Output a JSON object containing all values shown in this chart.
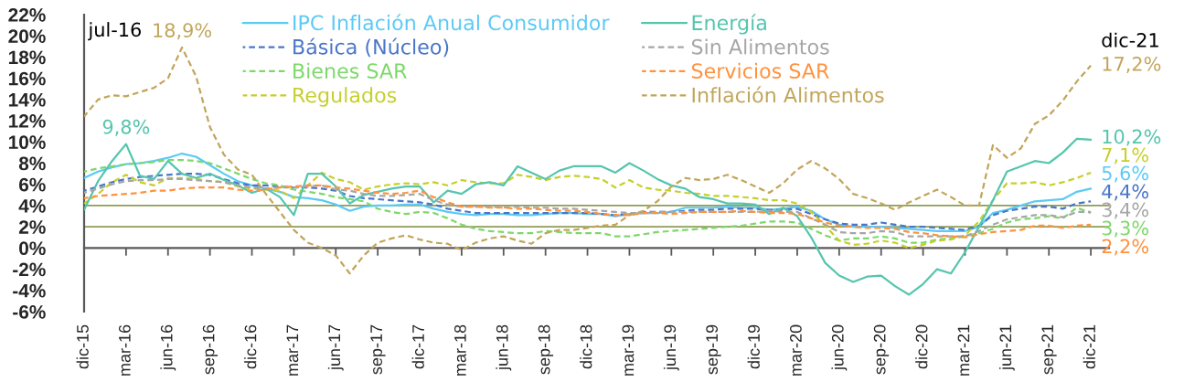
{
  "chart_data": {
    "type": "line",
    "categories": [
      "dic-15",
      null,
      null,
      "mar-16",
      null,
      null,
      "jun-16",
      null,
      null,
      "sep-16",
      null,
      null,
      "dic-16",
      null,
      null,
      "mar-17",
      null,
      null,
      "jun-17",
      null,
      null,
      "sep-17",
      null,
      null,
      "dic-17",
      null,
      null,
      "mar-18",
      null,
      null,
      "jun-18",
      null,
      null,
      "sep-18",
      null,
      null,
      "dic-18",
      null,
      null,
      "mar-19",
      null,
      null,
      "jun-19",
      null,
      null,
      "sep-19",
      null,
      null,
      "dic-19",
      null,
      null,
      "mar-20",
      null,
      null,
      "jun-20",
      null,
      null,
      "sep-20",
      null,
      null,
      "dic-20",
      null,
      null,
      "mar-21",
      null,
      null,
      "jun-21",
      null,
      null,
      "sep-21",
      null,
      null,
      "dic-21"
    ],
    "series": [
      {
        "name": "IPC Inflación Anual Consumidor",
        "color": "#5bcaf5",
        "line_style": "solid",
        "values": [
          6.6,
          7.2,
          7.6,
          7.9,
          8.0,
          8.2,
          8.5,
          8.9,
          8.6,
          7.8,
          7.0,
          6.3,
          5.9,
          5.6,
          5.3,
          4.8,
          4.7,
          4.5,
          4.1,
          3.5,
          3.9,
          4.0,
          4.0,
          4.1,
          4.1,
          3.7,
          3.4,
          3.2,
          3.1,
          3.2,
          3.2,
          3.1,
          3.1,
          3.2,
          3.3,
          3.3,
          3.2,
          3.2,
          3.0,
          3.2,
          3.3,
          3.3,
          3.4,
          3.8,
          3.8,
          3.8,
          3.9,
          3.8,
          3.8,
          3.6,
          3.7,
          3.9,
          3.5,
          2.7,
          2.2,
          2.0,
          2.0,
          2.0,
          1.9,
          1.8,
          1.7,
          1.6,
          1.6,
          1.6,
          2.0,
          3.3,
          3.6,
          4.0,
          4.4,
          4.5,
          4.6,
          5.3,
          5.6
        ],
        "value_labels": [
          null,
          null,
          null,
          null,
          null,
          null,
          null,
          null,
          null,
          null,
          null,
          null,
          null,
          null,
          null,
          null,
          null,
          null,
          null,
          null,
          null,
          null,
          null,
          null,
          null,
          null,
          null,
          null,
          null,
          null,
          null,
          null,
          null,
          null,
          null,
          null,
          null,
          null,
          null,
          null,
          null,
          null,
          null,
          null,
          null,
          null,
          null,
          null,
          null,
          null,
          null,
          null,
          null,
          null,
          null,
          null,
          null,
          null,
          null,
          null,
          null,
          null,
          null,
          null,
          null,
          null,
          null,
          null,
          null,
          null,
          null,
          null,
          "5,6%"
        ]
      },
      {
        "name": "Básica (Núcleo)",
        "color": "#4a76c8",
        "line_style": "dashed",
        "values": [
          5.4,
          5.8,
          6.2,
          6.5,
          6.7,
          6.8,
          6.9,
          7.0,
          7.0,
          6.9,
          6.5,
          6.1,
          5.9,
          5.9,
          5.8,
          5.7,
          5.7,
          5.6,
          5.4,
          4.9,
          4.7,
          4.6,
          4.5,
          4.4,
          4.3,
          4.1,
          3.7,
          3.5,
          3.3,
          3.3,
          3.3,
          3.3,
          3.3,
          3.3,
          3.3,
          3.3,
          3.3,
          3.2,
          3.1,
          3.2,
          3.4,
          3.4,
          3.4,
          3.5,
          3.6,
          3.6,
          3.7,
          3.7,
          3.7,
          3.6,
          3.6,
          3.7,
          3.2,
          2.7,
          2.3,
          2.2,
          2.2,
          2.4,
          2.2,
          2.0,
          2.0,
          1.9,
          1.8,
          1.7,
          2.1,
          3.1,
          3.5,
          3.7,
          3.9,
          3.9,
          3.7,
          4.2,
          4.4
        ],
        "value_labels": [
          null,
          null,
          null,
          null,
          null,
          null,
          null,
          null,
          null,
          null,
          null,
          null,
          null,
          null,
          null,
          null,
          null,
          null,
          null,
          null,
          null,
          null,
          null,
          null,
          null,
          null,
          null,
          null,
          null,
          null,
          null,
          null,
          null,
          null,
          null,
          null,
          null,
          null,
          null,
          null,
          null,
          null,
          null,
          null,
          null,
          null,
          null,
          null,
          null,
          null,
          null,
          null,
          null,
          null,
          null,
          null,
          null,
          null,
          null,
          null,
          null,
          null,
          null,
          null,
          null,
          null,
          null,
          null,
          null,
          null,
          null,
          null,
          "4,4%"
        ]
      },
      {
        "name": "Bienes SAR",
        "color": "#7dd86a",
        "line_style": "dashed",
        "values": [
          7.2,
          7.5,
          7.7,
          7.9,
          8.0,
          8.1,
          8.3,
          8.3,
          8.2,
          8.0,
          7.5,
          7.0,
          6.5,
          6.1,
          5.9,
          5.5,
          5.3,
          5.1,
          4.8,
          4.6,
          4.4,
          3.7,
          3.4,
          3.2,
          3.4,
          3.3,
          2.8,
          2.2,
          1.8,
          1.6,
          1.5,
          1.4,
          1.4,
          1.6,
          1.5,
          1.4,
          1.4,
          1.4,
          1.1,
          1.1,
          1.3,
          1.5,
          1.6,
          1.7,
          1.8,
          1.9,
          2.0,
          2.1,
          2.3,
          2.5,
          2.5,
          2.4,
          1.8,
          1.2,
          0.7,
          0.9,
          0.9,
          1.1,
          0.9,
          0.5,
          0.5,
          0.8,
          0.9,
          1.1,
          1.4,
          1.8,
          2.4,
          2.7,
          2.8,
          3.0,
          2.8,
          3.8,
          3.3
        ],
        "value_labels": [
          null,
          null,
          null,
          null,
          null,
          null,
          null,
          null,
          null,
          null,
          null,
          null,
          null,
          null,
          null,
          null,
          null,
          null,
          null,
          null,
          null,
          null,
          null,
          null,
          null,
          null,
          null,
          null,
          null,
          null,
          null,
          null,
          null,
          null,
          null,
          null,
          null,
          null,
          null,
          null,
          null,
          null,
          null,
          null,
          null,
          null,
          null,
          null,
          null,
          null,
          null,
          null,
          null,
          null,
          null,
          null,
          null,
          null,
          null,
          null,
          null,
          null,
          null,
          null,
          null,
          null,
          null,
          null,
          null,
          null,
          null,
          null,
          "3,3%"
        ]
      },
      {
        "name": "Regulados",
        "color": "#c6cf2a",
        "line_style": "dashed",
        "values": [
          4.2,
          5.1,
          6.2,
          6.9,
          6.2,
          5.9,
          6.6,
          6.6,
          6.5,
          6.3,
          6.2,
          5.8,
          5.6,
          5.5,
          5.4,
          4.7,
          5.9,
          7.1,
          6.5,
          6.2,
          5.5,
          5.8,
          6.0,
          6.1,
          6.0,
          6.2,
          5.9,
          6.4,
          6.2,
          6.1,
          6.1,
          6.9,
          6.7,
          6.4,
          6.7,
          6.8,
          6.7,
          6.5,
          5.7,
          6.4,
          5.7,
          5.5,
          5.4,
          5.2,
          5.1,
          4.9,
          4.9,
          4.8,
          4.7,
          4.5,
          4.5,
          4.2,
          3.4,
          2.1,
          0.7,
          0.3,
          0.4,
          0.7,
          0.5,
          0.0,
          0.3,
          0.7,
          0.8,
          1.2,
          2.5,
          4.5,
          6.1,
          6.1,
          6.2,
          5.9,
          6.2,
          6.6,
          7.1
        ],
        "value_labels": [
          null,
          null,
          null,
          null,
          null,
          null,
          null,
          null,
          null,
          null,
          null,
          null,
          null,
          null,
          null,
          null,
          null,
          null,
          null,
          null,
          null,
          null,
          null,
          null,
          null,
          null,
          null,
          null,
          null,
          null,
          null,
          null,
          null,
          null,
          null,
          null,
          null,
          null,
          null,
          null,
          null,
          null,
          null,
          null,
          null,
          null,
          null,
          null,
          null,
          null,
          null,
          null,
          null,
          null,
          null,
          null,
          null,
          null,
          null,
          null,
          null,
          null,
          null,
          null,
          null,
          null,
          null,
          null,
          null,
          null,
          null,
          null,
          "7,1%"
        ]
      },
      {
        "name": "Energía",
        "color": "#55c5ae",
        "line_style": "solid",
        "values": [
          3.6,
          6.3,
          8.2,
          9.8,
          6.8,
          6.5,
          8.2,
          7.0,
          6.6,
          7.0,
          6.4,
          5.9,
          5.2,
          5.6,
          4.8,
          3.1,
          7.0,
          7.0,
          5.8,
          4.2,
          5.0,
          5.3,
          5.6,
          5.8,
          5.8,
          4.3,
          5.4,
          5.1,
          6.0,
          6.2,
          5.9,
          7.7,
          7.1,
          6.5,
          7.3,
          7.7,
          7.7,
          7.7,
          7.1,
          8.0,
          7.3,
          6.5,
          5.9,
          5.6,
          4.8,
          4.6,
          4.2,
          4.2,
          4.1,
          3.2,
          3.8,
          3.0,
          1.0,
          -1.4,
          -2.6,
          -3.2,
          -2.7,
          -2.6,
          -3.6,
          -4.4,
          -3.4,
          -2.0,
          -2.4,
          -0.4,
          2.0,
          4.5,
          7.2,
          7.7,
          8.2,
          8.0,
          9.0,
          10.3,
          10.2
        ],
        "value_labels": [
          null,
          null,
          null,
          "9,8%",
          null,
          null,
          null,
          null,
          null,
          null,
          null,
          null,
          null,
          null,
          null,
          null,
          null,
          null,
          null,
          null,
          null,
          null,
          null,
          null,
          null,
          null,
          null,
          null,
          null,
          null,
          null,
          null,
          null,
          null,
          null,
          null,
          null,
          null,
          null,
          null,
          null,
          null,
          null,
          null,
          null,
          null,
          null,
          null,
          null,
          null,
          null,
          null,
          null,
          null,
          null,
          null,
          null,
          null,
          null,
          null,
          null,
          null,
          null,
          null,
          null,
          null,
          null,
          null,
          null,
          null,
          null,
          null,
          "10,2%"
        ]
      },
      {
        "name": "Sin Alimentos",
        "color": "#a6a6a6",
        "line_style": "dashed",
        "values": [
          5.2,
          5.6,
          6.0,
          6.3,
          6.4,
          6.4,
          6.5,
          6.5,
          6.4,
          6.3,
          6.2,
          5.9,
          5.7,
          5.6,
          5.7,
          5.7,
          5.8,
          5.9,
          5.5,
          5.4,
          5.1,
          4.9,
          4.9,
          5.0,
          5.1,
          4.5,
          4.1,
          3.9,
          3.9,
          3.9,
          3.8,
          3.9,
          3.8,
          3.8,
          3.7,
          3.7,
          3.6,
          3.5,
          3.4,
          3.3,
          3.3,
          3.4,
          3.4,
          3.4,
          3.4,
          3.4,
          3.4,
          3.4,
          3.4,
          3.5,
          3.4,
          3.4,
          2.8,
          2.2,
          1.5,
          1.4,
          1.4,
          1.6,
          1.5,
          1.1,
          1.1,
          1.1,
          1.1,
          1.1,
          1.6,
          2.2,
          2.7,
          2.9,
          3.1,
          3.1,
          2.9,
          3.4,
          3.4
        ],
        "value_labels": [
          null,
          null,
          null,
          null,
          null,
          null,
          null,
          null,
          null,
          null,
          null,
          null,
          null,
          null,
          null,
          null,
          null,
          null,
          null,
          null,
          null,
          null,
          null,
          null,
          null,
          null,
          null,
          null,
          null,
          null,
          null,
          null,
          null,
          null,
          null,
          null,
          null,
          null,
          null,
          null,
          null,
          null,
          null,
          null,
          null,
          null,
          null,
          null,
          null,
          null,
          null,
          null,
          null,
          null,
          null,
          null,
          null,
          null,
          null,
          null,
          null,
          null,
          null,
          null,
          null,
          null,
          null,
          null,
          null,
          null,
          null,
          null,
          "3,4%"
        ]
      },
      {
        "name": "Servicios SAR",
        "color": "#ff923f",
        "line_style": "dashed",
        "values": [
          4.7,
          4.9,
          5.0,
          5.1,
          5.2,
          5.4,
          5.4,
          5.6,
          5.7,
          5.7,
          5.7,
          5.5,
          5.4,
          5.5,
          5.7,
          5.8,
          5.9,
          5.9,
          5.7,
          5.6,
          5.4,
          5.2,
          5.1,
          5.2,
          5.4,
          4.8,
          4.3,
          3.9,
          3.9,
          3.8,
          3.8,
          3.7,
          3.7,
          3.6,
          3.5,
          3.5,
          3.4,
          3.2,
          3.1,
          3.1,
          3.3,
          3.3,
          3.2,
          3.3,
          3.4,
          3.4,
          3.4,
          3.5,
          3.4,
          3.3,
          3.3,
          3.2,
          2.8,
          2.4,
          2.1,
          2.0,
          1.9,
          1.9,
          1.8,
          1.5,
          1.4,
          1.2,
          1.1,
          1.0,
          1.3,
          1.5,
          1.6,
          1.7,
          2.1,
          2.1,
          1.9,
          2.1,
          2.2
        ],
        "value_labels": [
          null,
          null,
          null,
          null,
          null,
          null,
          null,
          null,
          null,
          null,
          null,
          null,
          null,
          null,
          null,
          null,
          null,
          null,
          null,
          null,
          null,
          null,
          null,
          null,
          null,
          null,
          null,
          null,
          null,
          null,
          null,
          null,
          null,
          null,
          null,
          null,
          null,
          null,
          null,
          null,
          null,
          null,
          null,
          null,
          null,
          null,
          null,
          null,
          null,
          null,
          null,
          null,
          null,
          null,
          null,
          null,
          null,
          null,
          null,
          null,
          null,
          null,
          null,
          null,
          null,
          null,
          null,
          null,
          null,
          null,
          null,
          null,
          "2,2%"
        ]
      },
      {
        "name": "Inflación Alimentos",
        "color": "#c2a55a",
        "line_style": "dashed",
        "values": [
          12.4,
          14.0,
          14.4,
          14.3,
          14.7,
          15.1,
          16.0,
          18.9,
          16.2,
          11.4,
          8.8,
          7.4,
          6.9,
          5.1,
          3.4,
          1.7,
          0.5,
          0.0,
          -0.7,
          -2.4,
          -0.7,
          0.5,
          0.9,
          1.2,
          0.8,
          0.5,
          0.4,
          -0.2,
          0.5,
          0.9,
          1.1,
          0.7,
          0.4,
          1.4,
          1.7,
          1.7,
          1.9,
          2.1,
          2.2,
          3.1,
          3.5,
          4.4,
          5.8,
          6.6,
          6.4,
          6.5,
          6.9,
          6.4,
          5.8,
          5.2,
          6.1,
          7.4,
          8.2,
          7.5,
          6.5,
          5.1,
          4.7,
          4.2,
          3.6,
          4.3,
          4.9,
          5.5,
          4.8,
          4.0,
          4.0,
          9.7,
          8.5,
          9.4,
          11.7,
          12.5,
          13.9,
          15.7,
          17.2
        ],
        "value_labels": [
          null,
          null,
          null,
          null,
          null,
          null,
          null,
          "18,9%",
          null,
          null,
          null,
          null,
          null,
          null,
          null,
          null,
          null,
          null,
          null,
          null,
          null,
          null,
          null,
          null,
          null,
          null,
          null,
          null,
          null,
          null,
          null,
          null,
          null,
          null,
          null,
          null,
          null,
          null,
          null,
          null,
          null,
          null,
          null,
          null,
          null,
          null,
          null,
          null,
          null,
          null,
          null,
          null,
          null,
          null,
          null,
          null,
          null,
          null,
          null,
          null,
          null,
          null,
          null,
          null,
          null,
          null,
          null,
          null,
          null,
          null,
          null,
          null,
          "17,2%"
        ]
      }
    ],
    "ylim": [
      -6,
      22
    ],
    "yticks": [
      {
        "value": -6,
        "label": "-6%"
      },
      {
        "value": -4,
        "label": "-4%"
      },
      {
        "value": -2,
        "label": "-2%"
      },
      {
        "value": 0,
        "label": "0%"
      },
      {
        "value": 2,
        "label": "2%"
      },
      {
        "value": 4,
        "label": "4%"
      },
      {
        "value": 6,
        "label": "6%"
      },
      {
        "value": 8,
        "label": "8%"
      },
      {
        "value": 10,
        "label": "10%"
      },
      {
        "value": 12,
        "label": "12%"
      },
      {
        "value": 14,
        "label": "14%"
      },
      {
        "value": 16,
        "label": "16%"
      },
      {
        "value": 18,
        "label": "18%"
      },
      {
        "value": 20,
        "label": "20%"
      },
      {
        "value": 22,
        "label": "22%"
      }
    ],
    "ref_lines": [
      {
        "axis": "y",
        "value": 2,
        "color": "#8e9c55"
      },
      {
        "axis": "y",
        "value": 4,
        "color": "#8e9c55"
      }
    ],
    "legend": "top",
    "annotations": [
      "jul-16",
      "dic-21"
    ]
  }
}
